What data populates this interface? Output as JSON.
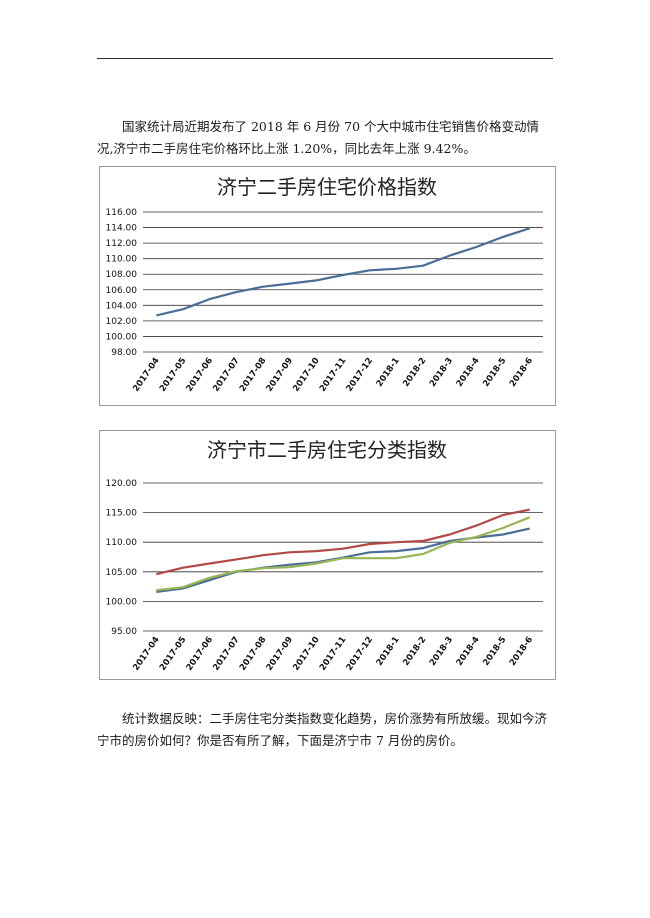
{
  "paragraphs": [
    "国家统计局近期发布了 2018 年 6 月份 70 个大中城市住宅销售价格变动情况,济宁市二手房住宅价格环比上涨 1.20%，同比去年上涨 9.42%。",
    "统计数据反映：二手房住宅分类指数变化趋势，房价涨势有所放缓。现如今济宁市的房价如何？你是否有所了解，下面是济宁市 7 月份的房价。"
  ],
  "chart_data": [
    {
      "type": "line",
      "title": "济宁二手房住宅价格指数",
      "categories": [
        "2017-04",
        "2017-05",
        "2017-06",
        "2017-07",
        "2017-08",
        "2017-09",
        "2017-10",
        "2017-11",
        "2017-12",
        "2018-1",
        "2018-2",
        "2018-3",
        "2018-4",
        "2018-5",
        "2018-6"
      ],
      "yticks": [
        "98.00",
        "100.00",
        "102.00",
        "104.00",
        "106.00",
        "108.00",
        "110.00",
        "112.00",
        "114.00",
        "116.00"
      ],
      "ylim": [
        98,
        116
      ],
      "grid": true,
      "series": [
        {
          "color": "#4a6e96",
          "values": [
            102.7,
            103.5,
            104.8,
            105.7,
            106.4,
            106.8,
            107.2,
            107.9,
            108.5,
            108.7,
            109.1,
            110.4,
            111.5,
            112.8,
            113.9
          ]
        }
      ]
    },
    {
      "type": "line",
      "title": "济宁市二手房住宅分类指数",
      "categories": [
        "2017-04",
        "2017-05",
        "2017-06",
        "2017-07",
        "2017-08",
        "2017-09",
        "2017-10",
        "2017-11",
        "2017-12",
        "2018-1",
        "2018-2",
        "2018-3",
        "2018-4",
        "2018-5",
        "2018-6"
      ],
      "yticks": [
        "95.00",
        "100.00",
        "105.00",
        "110.00",
        "115.00",
        "120.00"
      ],
      "ylim": [
        95,
        120
      ],
      "grid": true,
      "series": [
        {
          "color": "#4a6e96",
          "values": [
            101.6,
            102.2,
            103.6,
            105.0,
            105.7,
            106.2,
            106.6,
            107.4,
            108.3,
            108.5,
            109.0,
            110.2,
            110.8,
            111.3,
            112.3
          ]
        },
        {
          "color": "#b24a47",
          "values": [
            104.6,
            105.7,
            106.4,
            107.1,
            107.8,
            108.3,
            108.5,
            108.9,
            109.7,
            110.0,
            110.2,
            111.3,
            112.8,
            114.6,
            115.5
          ]
        },
        {
          "color": "#98b656",
          "values": [
            101.9,
            102.4,
            104.0,
            105.1,
            105.6,
            105.8,
            106.4,
            107.3,
            107.3,
            107.3,
            108.0,
            109.9,
            110.9,
            112.4,
            114.2
          ]
        }
      ]
    }
  ]
}
